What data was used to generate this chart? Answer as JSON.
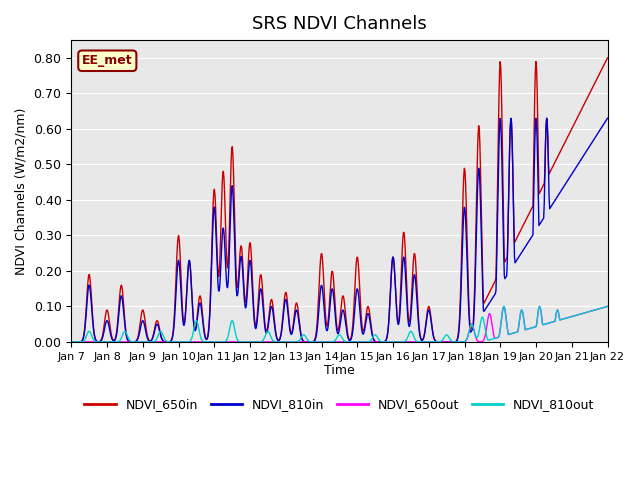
{
  "title": "SRS NDVI Channels",
  "ylabel": "NDVI Channels (W/m2/nm)",
  "xlabel": "Time",
  "annotation": "EE_met",
  "ylim": [
    0.0,
    0.85
  ],
  "legend_labels": [
    "NDVI_650in",
    "NDVI_810in",
    "NDVI_650out",
    "NDVI_810out"
  ],
  "line_colors": {
    "NDVI_650in": "#cc0000",
    "NDVI_810in": "#0000cc",
    "NDVI_650out": "#ff00ff",
    "NDVI_810out": "#00cccc"
  },
  "bg_color": "#e8e8e8",
  "x_tick_labels": [
    "Jan 7",
    "Jan 8",
    "Jan 9",
    "Jan 10",
    "Jan 11",
    "Jan 12",
    "Jan 13",
    "Jan 14",
    "Jan 15",
    "Jan 16",
    "Jan 17",
    "Jan 18",
    "Jan 19",
    "Jan 20",
    "Jan 21",
    "Jan 22"
  ],
  "yticks": [
    0.0,
    0.1,
    0.2,
    0.3,
    0.4,
    0.5,
    0.6,
    0.7,
    0.8
  ]
}
